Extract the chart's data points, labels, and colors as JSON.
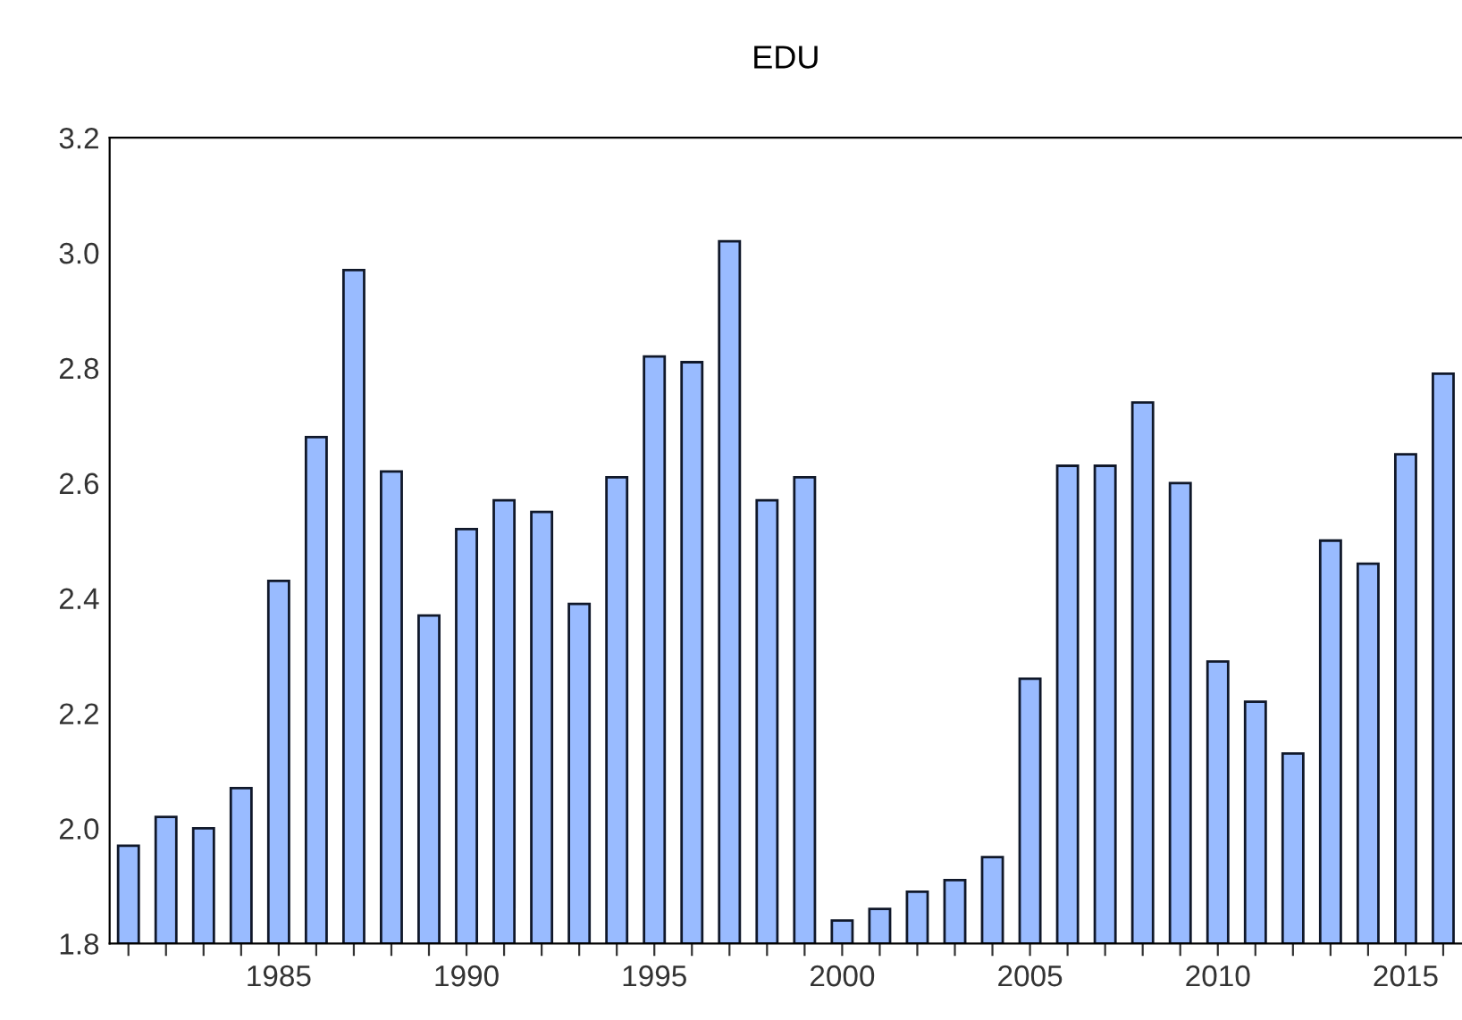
{
  "chart_data": {
    "type": "bar",
    "title": "EDU",
    "x": [
      1981,
      1982,
      1983,
      1984,
      1985,
      1986,
      1987,
      1988,
      1989,
      1990,
      1991,
      1992,
      1993,
      1994,
      1995,
      1996,
      1997,
      1998,
      1999,
      2000,
      2001,
      2002,
      2003,
      2004,
      2005,
      2006,
      2007,
      2008,
      2009,
      2010,
      2011,
      2012,
      2013,
      2014,
      2015,
      2016
    ],
    "values": [
      1.97,
      2.02,
      2.0,
      2.07,
      2.43,
      2.68,
      2.97,
      2.62,
      2.37,
      2.52,
      2.57,
      2.55,
      2.39,
      2.61,
      2.82,
      2.81,
      3.02,
      2.57,
      2.61,
      1.84,
      1.86,
      1.89,
      1.91,
      1.95,
      2.26,
      2.63,
      2.63,
      2.74,
      2.6,
      2.29,
      2.22,
      2.13,
      2.5,
      2.46,
      2.65,
      2.79
    ],
    "color": "#99bbff",
    "xlim": [
      1980.5,
      2016.5
    ],
    "xticks": [
      {
        "value": 1981,
        "label": null
      },
      {
        "value": 1982,
        "label": null
      },
      {
        "value": 1983,
        "label": null
      },
      {
        "value": 1984,
        "label": null
      },
      1985,
      {
        "value": 1986,
        "label": null
      },
      {
        "value": 1987,
        "label": null
      },
      {
        "value": 1988,
        "label": null
      },
      {
        "value": 1989,
        "label": null
      },
      1990,
      {
        "value": 1991,
        "label": null
      },
      {
        "value": 1992,
        "label": null
      },
      {
        "value": 1993,
        "label": null
      },
      {
        "value": 1994,
        "label": null
      },
      1995,
      {
        "value": 1996,
        "label": null
      },
      {
        "value": 1997,
        "label": null
      },
      {
        "value": 1998,
        "label": null
      },
      {
        "value": 1999,
        "label": null
      },
      2000,
      {
        "value": 2001,
        "label": null
      },
      {
        "value": 2002,
        "label": null
      },
      {
        "value": 2003,
        "label": null
      },
      {
        "value": 2004,
        "label": null
      },
      2005,
      {
        "value": 2006,
        "label": null
      },
      {
        "value": 2007,
        "label": null
      },
      {
        "value": 2008,
        "label": null
      },
      {
        "value": 2009,
        "label": null
      },
      2010,
      {
        "value": 2011,
        "label": null
      },
      {
        "value": 2012,
        "label": null
      },
      {
        "value": 2013,
        "label": null
      },
      {
        "value": 2014,
        "label": null
      },
      2015,
      {
        "value": 2016,
        "label": null
      }
    ],
    "ylim": [
      1.8,
      3.2
    ],
    "yticks": [
      {
        "value": 1.8,
        "label": "1.8"
      },
      {
        "value": 2.0,
        "label": "2.0"
      },
      {
        "value": 2.2,
        "label": "2.2"
      },
      {
        "value": 2.4,
        "label": "2.4"
      },
      {
        "value": 2.6,
        "label": "2.6"
      },
      {
        "value": 2.8,
        "label": "2.8"
      },
      {
        "value": 3.0,
        "label": "3.0"
      },
      {
        "value": 3.2,
        "label": "3.2"
      }
    ],
    "grid": false
  }
}
